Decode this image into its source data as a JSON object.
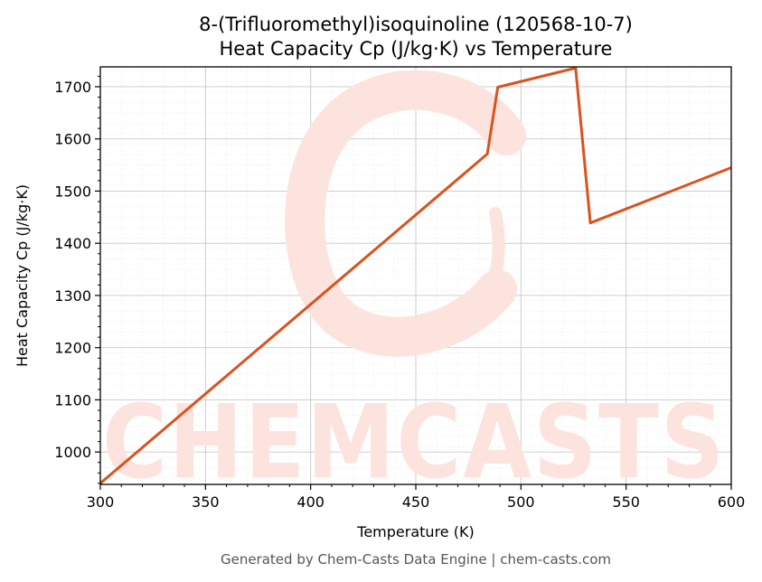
{
  "chart_data": {
    "type": "line",
    "title_line1": "8-(Trifluoromethyl)isoquinoline (120568-10-7)",
    "title_line2": "Heat Capacity Cp (J/kg·K) vs Temperature",
    "xlabel": "Temperature (K)",
    "ylabel": "Heat Capacity Cp (J/kg·K)",
    "xlim": [
      300,
      600
    ],
    "ylim": [
      938,
      1738
    ],
    "x_ticks": [
      300,
      350,
      400,
      450,
      500,
      550,
      600
    ],
    "y_ticks": [
      1000,
      1100,
      1200,
      1300,
      1400,
      1500,
      1600,
      1700
    ],
    "grid": true,
    "series": [
      {
        "color": "#d9531e",
        "x": [
          300,
          484,
          489,
          526,
          533,
          600
        ],
        "y": [
          940,
          1571,
          1699,
          1736,
          1439,
          1545
        ]
      }
    ]
  },
  "watermark": {
    "text": "CHEMCASTS",
    "color": "#fde3de"
  },
  "footer": "Generated by Chem-Casts Data Engine | chem-casts.com"
}
